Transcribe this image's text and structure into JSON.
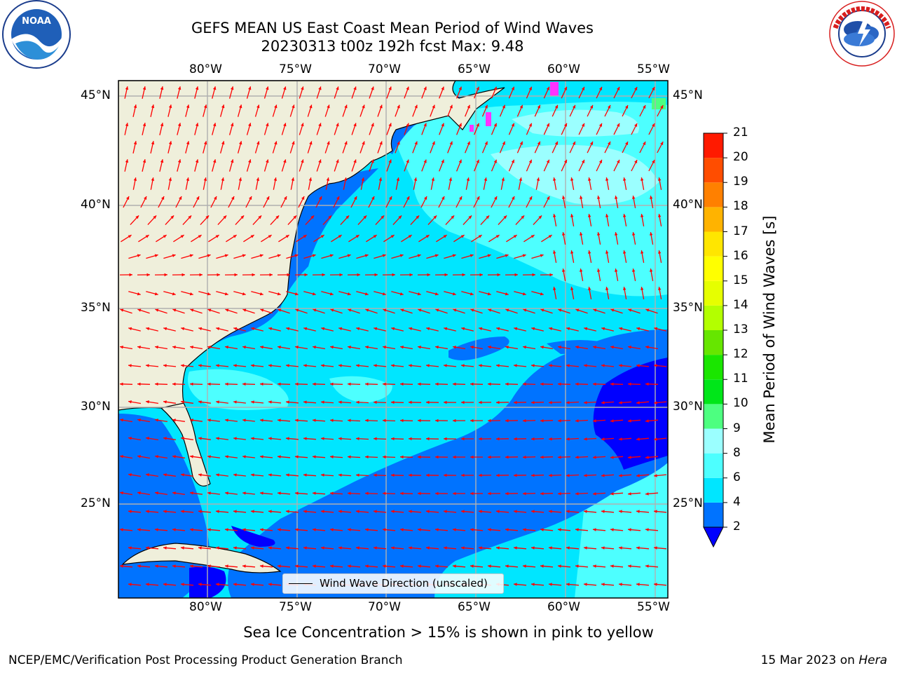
{
  "title": {
    "line1": "GEFS MEAN US East Coast Mean Period of Wind Waves",
    "line2": "20230313 t00z 192h fcst   Max: 9.48"
  },
  "map": {
    "lon_ticks": [
      "80°W",
      "75°W",
      "70°W",
      "65°W",
      "60°W",
      "55°W"
    ],
    "lat_ticks": [
      "45°N",
      "40°N",
      "35°N",
      "30°N",
      "25°N"
    ],
    "legend_label": "Wind Wave Direction (unscaled)",
    "arrow_color": "#ff0000",
    "land_color": "#efefdb",
    "grid_color": "#b0b0b0"
  },
  "colorbar": {
    "label": "Mean Period of Wind Waves [s]",
    "ticks": [
      "2",
      "4",
      "6",
      "8",
      "9",
      "10",
      "11",
      "12",
      "13",
      "14",
      "15",
      "16",
      "17",
      "18",
      "19",
      "20",
      "21"
    ],
    "colors": [
      "#0073ff",
      "#00e6ff",
      "#4dffff",
      "#9bffff",
      "#4dff80",
      "#00e619",
      "#1ae600",
      "#66e600",
      "#b3ff00",
      "#e6ff00",
      "#ffff00",
      "#ffe600",
      "#ffb300",
      "#ff8000",
      "#ff4d00",
      "#ff1a00"
    ],
    "under_color": "#0000ff"
  },
  "notes": {
    "ice": "Sea Ice Concentration > 15% is shown in pink to yellow"
  },
  "footer": {
    "left": "NCEP/EMC/Verification Post Processing Product Generation Branch",
    "right_prefix": "15 Mar 2023 on ",
    "right_machine": "Hera"
  },
  "logos": {
    "noaa_text": "NOAA",
    "noaa_ring_text": "NATIONAL OCEANIC AND ATMOSPHERIC ADMINISTRATION · U.S. DEPARTMENT OF COMMERCE",
    "nws_ring_text": "NATIONAL WEATHER SERVICE"
  }
}
